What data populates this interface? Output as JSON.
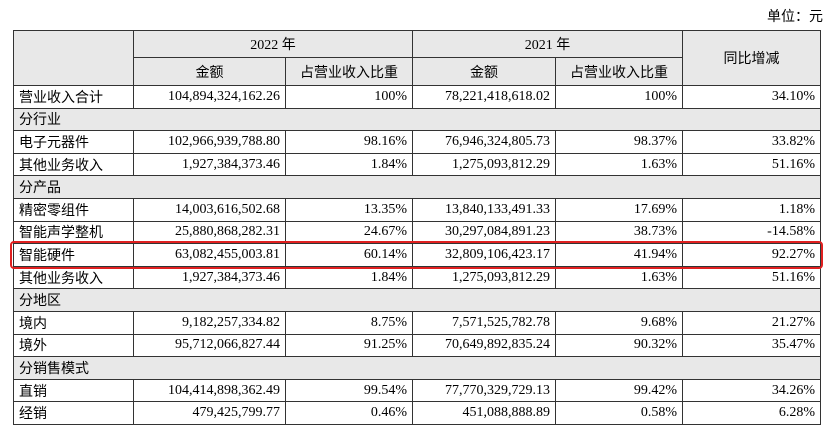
{
  "unit": "单位：元",
  "header": {
    "year_2022": "2022 年",
    "year_2021": "2021 年",
    "yoy": "同比增减",
    "cols_2022": [
      "金额",
      "占营业收入比重"
    ],
    "cols_2021": [
      "金额",
      "占营业收入比重"
    ]
  },
  "rows": [
    [
      "营业收入合计",
      "104,894,324,162.26",
      "100%",
      "78,221,418,618.02",
      "100%",
      "34.10%"
    ],
    [
      "分行业"
    ],
    [
      "电子元器件",
      "102,966,939,788.80",
      "98.16%",
      "76,946,324,805.73",
      "98.37%",
      "33.82%"
    ],
    [
      "其他业务收入",
      "1,927,384,373.46",
      "1.84%",
      "1,275,093,812.29",
      "1.63%",
      "51.16%"
    ],
    [
      "分产品"
    ],
    [
      "精密零组件",
      "14,003,616,502.68",
      "13.35%",
      "13,840,133,491.33",
      "17.69%",
      "1.18%"
    ],
    [
      "智能声学整机",
      "25,880,868,282.31",
      "24.67%",
      "30,297,084,891.23",
      "38.73%",
      "-14.58%"
    ],
    [
      "智能硬件",
      "63,082,455,003.81",
      "60.14%",
      "32,809,106,423.17",
      "41.94%",
      "92.27%"
    ],
    [
      "其他业务收入",
      "1,927,384,373.46",
      "1.84%",
      "1,275,093,812.29",
      "1.63%",
      "51.16%"
    ],
    [
      "分地区"
    ],
    [
      "境内",
      "9,182,257,334.82",
      "8.75%",
      "7,571,525,782.78",
      "9.68%",
      "21.27%"
    ],
    [
      "境外",
      "95,712,066,827.44",
      "91.25%",
      "70,649,892,835.24",
      "90.32%",
      "35.47%"
    ],
    [
      "分销售模式"
    ],
    [
      "直销",
      "104,414,898,362.49",
      "99.54%",
      "77,770,329,729.13",
      "99.42%",
      "34.26%"
    ],
    [
      "经销",
      "479,425,799.77",
      "0.46%",
      "451,088,888.89",
      "0.58%",
      "6.28%"
    ]
  ]
}
